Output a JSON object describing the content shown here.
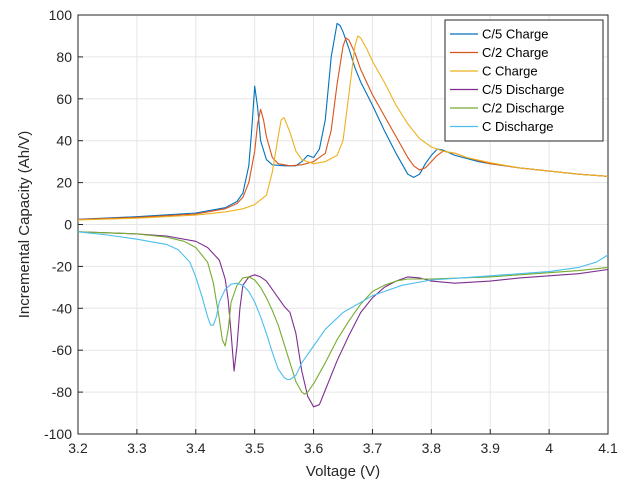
{
  "chart_data": {
    "type": "line",
    "title": "",
    "xlabel": "Voltage (V)",
    "ylabel": "Incremental Capacity (Ah/V)",
    "xlim": [
      3.2,
      4.1
    ],
    "ylim": [
      -100,
      100
    ],
    "xticks": [
      "3.2",
      "3.3",
      "3.4",
      "3.5",
      "3.6",
      "3.7",
      "3.8",
      "3.9",
      "4",
      "4.1"
    ],
    "yticks": [
      "-100",
      "-80",
      "-60",
      "-40",
      "-20",
      "0",
      "20",
      "40",
      "60",
      "80",
      "100"
    ],
    "grid": true,
    "legend_position": "top-right",
    "series": [
      {
        "name": "C/5 Charge",
        "color": "#0072BD",
        "points": [
          [
            3.2,
            2.5
          ],
          [
            3.3,
            3.7
          ],
          [
            3.4,
            5.5
          ],
          [
            3.45,
            8
          ],
          [
            3.47,
            11
          ],
          [
            3.48,
            15
          ],
          [
            3.49,
            28
          ],
          [
            3.495,
            45
          ],
          [
            3.5,
            66
          ],
          [
            3.505,
            56
          ],
          [
            3.51,
            40
          ],
          [
            3.52,
            31
          ],
          [
            3.53,
            28.5
          ],
          [
            3.55,
            28
          ],
          [
            3.57,
            28
          ],
          [
            3.58,
            30
          ],
          [
            3.59,
            33
          ],
          [
            3.6,
            32
          ],
          [
            3.61,
            36
          ],
          [
            3.62,
            50
          ],
          [
            3.63,
            80
          ],
          [
            3.64,
            96
          ],
          [
            3.645,
            95
          ],
          [
            3.65,
            92
          ],
          [
            3.66,
            84
          ],
          [
            3.67,
            75
          ],
          [
            3.68,
            68
          ],
          [
            3.7,
            57
          ],
          [
            3.72,
            45
          ],
          [
            3.74,
            34
          ],
          [
            3.76,
            24
          ],
          [
            3.77,
            22.5
          ],
          [
            3.78,
            24
          ],
          [
            3.79,
            29
          ],
          [
            3.8,
            33
          ],
          [
            3.81,
            36
          ],
          [
            3.82,
            35.5
          ],
          [
            3.84,
            33
          ],
          [
            3.86,
            31.5
          ],
          [
            3.88,
            30
          ],
          [
            3.9,
            29
          ],
          [
            3.95,
            27
          ],
          [
            4.0,
            25.5
          ],
          [
            4.05,
            24
          ],
          [
            4.1,
            23
          ]
        ]
      },
      {
        "name": "C/2 Charge",
        "color": "#D95319",
        "points": [
          [
            3.2,
            2.4
          ],
          [
            3.3,
            3.4
          ],
          [
            3.4,
            5
          ],
          [
            3.45,
            7.5
          ],
          [
            3.47,
            10
          ],
          [
            3.48,
            13
          ],
          [
            3.49,
            20
          ],
          [
            3.5,
            35
          ],
          [
            3.505,
            48
          ],
          [
            3.51,
            55
          ],
          [
            3.515,
            50
          ],
          [
            3.52,
            42
          ],
          [
            3.53,
            32
          ],
          [
            3.54,
            29
          ],
          [
            3.56,
            28
          ],
          [
            3.58,
            28.5
          ],
          [
            3.6,
            30
          ],
          [
            3.62,
            34
          ],
          [
            3.63,
            45
          ],
          [
            3.64,
            67
          ],
          [
            3.65,
            85
          ],
          [
            3.655,
            89
          ],
          [
            3.66,
            88
          ],
          [
            3.67,
            82
          ],
          [
            3.68,
            74
          ],
          [
            3.7,
            62
          ],
          [
            3.72,
            52
          ],
          [
            3.74,
            42
          ],
          [
            3.76,
            32
          ],
          [
            3.77,
            28
          ],
          [
            3.78,
            26
          ],
          [
            3.79,
            27
          ],
          [
            3.8,
            30
          ],
          [
            3.81,
            33
          ],
          [
            3.82,
            35
          ],
          [
            3.84,
            34
          ],
          [
            3.86,
            32
          ],
          [
            3.9,
            29
          ],
          [
            3.95,
            27
          ],
          [
            4.0,
            25.5
          ],
          [
            4.05,
            24
          ],
          [
            4.1,
            23
          ]
        ]
      },
      {
        "name": "C Charge",
        "color": "#EDB120",
        "points": [
          [
            3.2,
            2.2
          ],
          [
            3.3,
            3
          ],
          [
            3.4,
            4.5
          ],
          [
            3.45,
            6
          ],
          [
            3.48,
            7.5
          ],
          [
            3.5,
            9.5
          ],
          [
            3.52,
            14
          ],
          [
            3.53,
            25
          ],
          [
            3.54,
            42
          ],
          [
            3.545,
            50
          ],
          [
            3.55,
            51
          ],
          [
            3.56,
            44
          ],
          [
            3.57,
            35
          ],
          [
            3.58,
            31
          ],
          [
            3.6,
            29
          ],
          [
            3.62,
            30
          ],
          [
            3.64,
            33
          ],
          [
            3.65,
            40
          ],
          [
            3.66,
            62
          ],
          [
            3.67,
            85
          ],
          [
            3.675,
            90
          ],
          [
            3.68,
            89
          ],
          [
            3.69,
            84
          ],
          [
            3.7,
            78
          ],
          [
            3.72,
            68
          ],
          [
            3.74,
            57
          ],
          [
            3.76,
            48
          ],
          [
            3.78,
            41
          ],
          [
            3.8,
            37
          ],
          [
            3.82,
            35
          ],
          [
            3.84,
            34
          ],
          [
            3.86,
            32
          ],
          [
            3.9,
            29.5
          ],
          [
            3.95,
            27
          ],
          [
            4.0,
            25.5
          ],
          [
            4.05,
            24
          ],
          [
            4.1,
            23
          ]
        ]
      },
      {
        "name": "C/5 Discharge",
        "color": "#7E2F8E",
        "points": [
          [
            3.2,
            -3.5
          ],
          [
            3.3,
            -4.5
          ],
          [
            3.35,
            -5.5
          ],
          [
            3.4,
            -8
          ],
          [
            3.42,
            -11
          ],
          [
            3.44,
            -17
          ],
          [
            3.45,
            -26
          ],
          [
            3.455,
            -36
          ],
          [
            3.46,
            -52
          ],
          [
            3.465,
            -70
          ],
          [
            3.47,
            -58
          ],
          [
            3.475,
            -40
          ],
          [
            3.48,
            -29
          ],
          [
            3.49,
            -25
          ],
          [
            3.5,
            -24
          ],
          [
            3.51,
            -25
          ],
          [
            3.52,
            -27
          ],
          [
            3.53,
            -31
          ],
          [
            3.54,
            -35
          ],
          [
            3.55,
            -39
          ],
          [
            3.56,
            -42
          ],
          [
            3.57,
            -52
          ],
          [
            3.58,
            -70
          ],
          [
            3.59,
            -82
          ],
          [
            3.6,
            -87
          ],
          [
            3.61,
            -86
          ],
          [
            3.62,
            -79
          ],
          [
            3.64,
            -65
          ],
          [
            3.66,
            -53
          ],
          [
            3.68,
            -42
          ],
          [
            3.7,
            -35
          ],
          [
            3.72,
            -30
          ],
          [
            3.74,
            -27
          ],
          [
            3.76,
            -25
          ],
          [
            3.78,
            -25.5
          ],
          [
            3.8,
            -27
          ],
          [
            3.84,
            -28
          ],
          [
            3.9,
            -27
          ],
          [
            3.95,
            -25.5
          ],
          [
            4.0,
            -24.5
          ],
          [
            4.05,
            -23.5
          ],
          [
            4.1,
            -21.5
          ]
        ]
      },
      {
        "name": "C/2 Discharge",
        "color": "#77AC30",
        "points": [
          [
            3.2,
            -3.5
          ],
          [
            3.3,
            -4.5
          ],
          [
            3.35,
            -6
          ],
          [
            3.38,
            -8
          ],
          [
            3.4,
            -11
          ],
          [
            3.42,
            -18
          ],
          [
            3.43,
            -28
          ],
          [
            3.44,
            -45
          ],
          [
            3.445,
            -55
          ],
          [
            3.45,
            -58
          ],
          [
            3.455,
            -50
          ],
          [
            3.46,
            -37
          ],
          [
            3.47,
            -29
          ],
          [
            3.48,
            -25.5
          ],
          [
            3.49,
            -25
          ],
          [
            3.5,
            -26.5
          ],
          [
            3.51,
            -30
          ],
          [
            3.52,
            -35
          ],
          [
            3.53,
            -41
          ],
          [
            3.54,
            -48
          ],
          [
            3.55,
            -57
          ],
          [
            3.56,
            -66
          ],
          [
            3.57,
            -75
          ],
          [
            3.58,
            -80
          ],
          [
            3.585,
            -81
          ],
          [
            3.59,
            -80
          ],
          [
            3.6,
            -76
          ],
          [
            3.62,
            -66
          ],
          [
            3.64,
            -55
          ],
          [
            3.66,
            -46
          ],
          [
            3.68,
            -38
          ],
          [
            3.7,
            -32
          ],
          [
            3.72,
            -29
          ],
          [
            3.74,
            -27
          ],
          [
            3.76,
            -26
          ],
          [
            3.8,
            -26
          ],
          [
            3.85,
            -25.5
          ],
          [
            3.9,
            -25
          ],
          [
            3.95,
            -24
          ],
          [
            4.0,
            -23
          ],
          [
            4.05,
            -22
          ],
          [
            4.1,
            -20.5
          ]
        ]
      },
      {
        "name": "C Discharge",
        "color": "#4DBEEE",
        "points": [
          [
            3.2,
            -3.5
          ],
          [
            3.25,
            -5
          ],
          [
            3.3,
            -7
          ],
          [
            3.35,
            -9.5
          ],
          [
            3.37,
            -12
          ],
          [
            3.39,
            -18
          ],
          [
            3.4,
            -25
          ],
          [
            3.41,
            -34
          ],
          [
            3.42,
            -44
          ],
          [
            3.425,
            -48
          ],
          [
            3.43,
            -48
          ],
          [
            3.435,
            -44
          ],
          [
            3.44,
            -37
          ],
          [
            3.45,
            -31
          ],
          [
            3.46,
            -28.5
          ],
          [
            3.47,
            -28
          ],
          [
            3.48,
            -29
          ],
          [
            3.49,
            -32
          ],
          [
            3.5,
            -37
          ],
          [
            3.51,
            -44
          ],
          [
            3.52,
            -52
          ],
          [
            3.53,
            -61
          ],
          [
            3.54,
            -69
          ],
          [
            3.55,
            -73
          ],
          [
            3.555,
            -74
          ],
          [
            3.56,
            -74
          ],
          [
            3.57,
            -72
          ],
          [
            3.58,
            -66
          ],
          [
            3.6,
            -58
          ],
          [
            3.62,
            -50
          ],
          [
            3.65,
            -42
          ],
          [
            3.7,
            -34
          ],
          [
            3.75,
            -29
          ],
          [
            3.8,
            -26.5
          ],
          [
            3.85,
            -25.5
          ],
          [
            3.9,
            -24.5
          ],
          [
            3.95,
            -23.5
          ],
          [
            4.0,
            -22.5
          ],
          [
            4.05,
            -20.5
          ],
          [
            4.08,
            -18
          ],
          [
            4.1,
            -14.5
          ]
        ]
      }
    ]
  }
}
